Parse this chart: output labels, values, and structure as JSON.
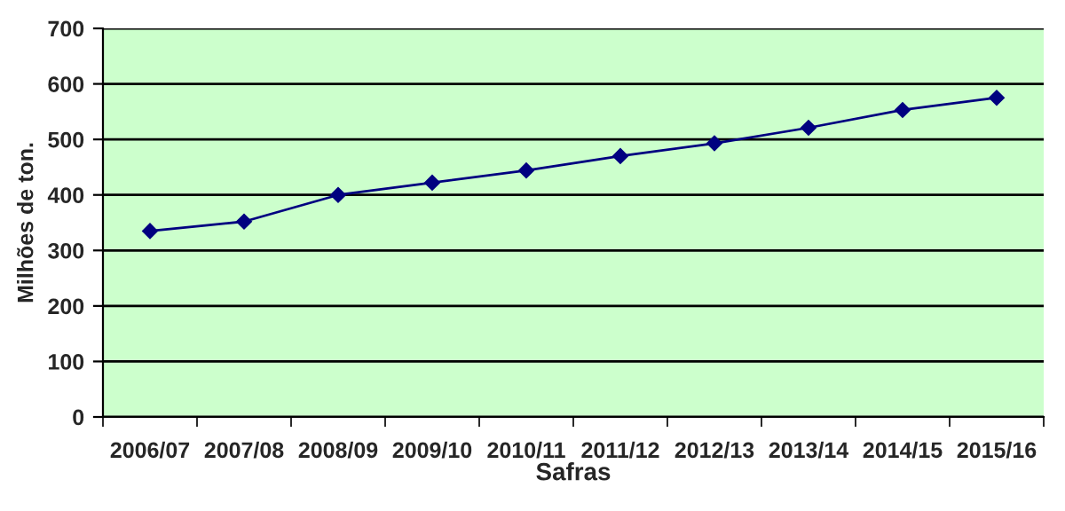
{
  "chart_data": {
    "type": "line",
    "xlabel": "Safras",
    "ylabel": "Milhões de ton.",
    "categories": [
      "2006/07",
      "2007/08",
      "2008/09",
      "2009/10",
      "2010/11",
      "2011/12",
      "2012/13",
      "2013/14",
      "2014/15",
      "2015/16"
    ],
    "series": [
      {
        "color": "#000080",
        "values": [
          335,
          352,
          400,
          422,
          444,
          470,
          493,
          521,
          553,
          575
        ]
      }
    ],
    "ylim": [
      0,
      700
    ],
    "yticks": [
      0,
      100,
      200,
      300,
      400,
      500,
      600,
      700
    ],
    "grid": "y",
    "marker": "diamond",
    "line_style": "solid"
  }
}
